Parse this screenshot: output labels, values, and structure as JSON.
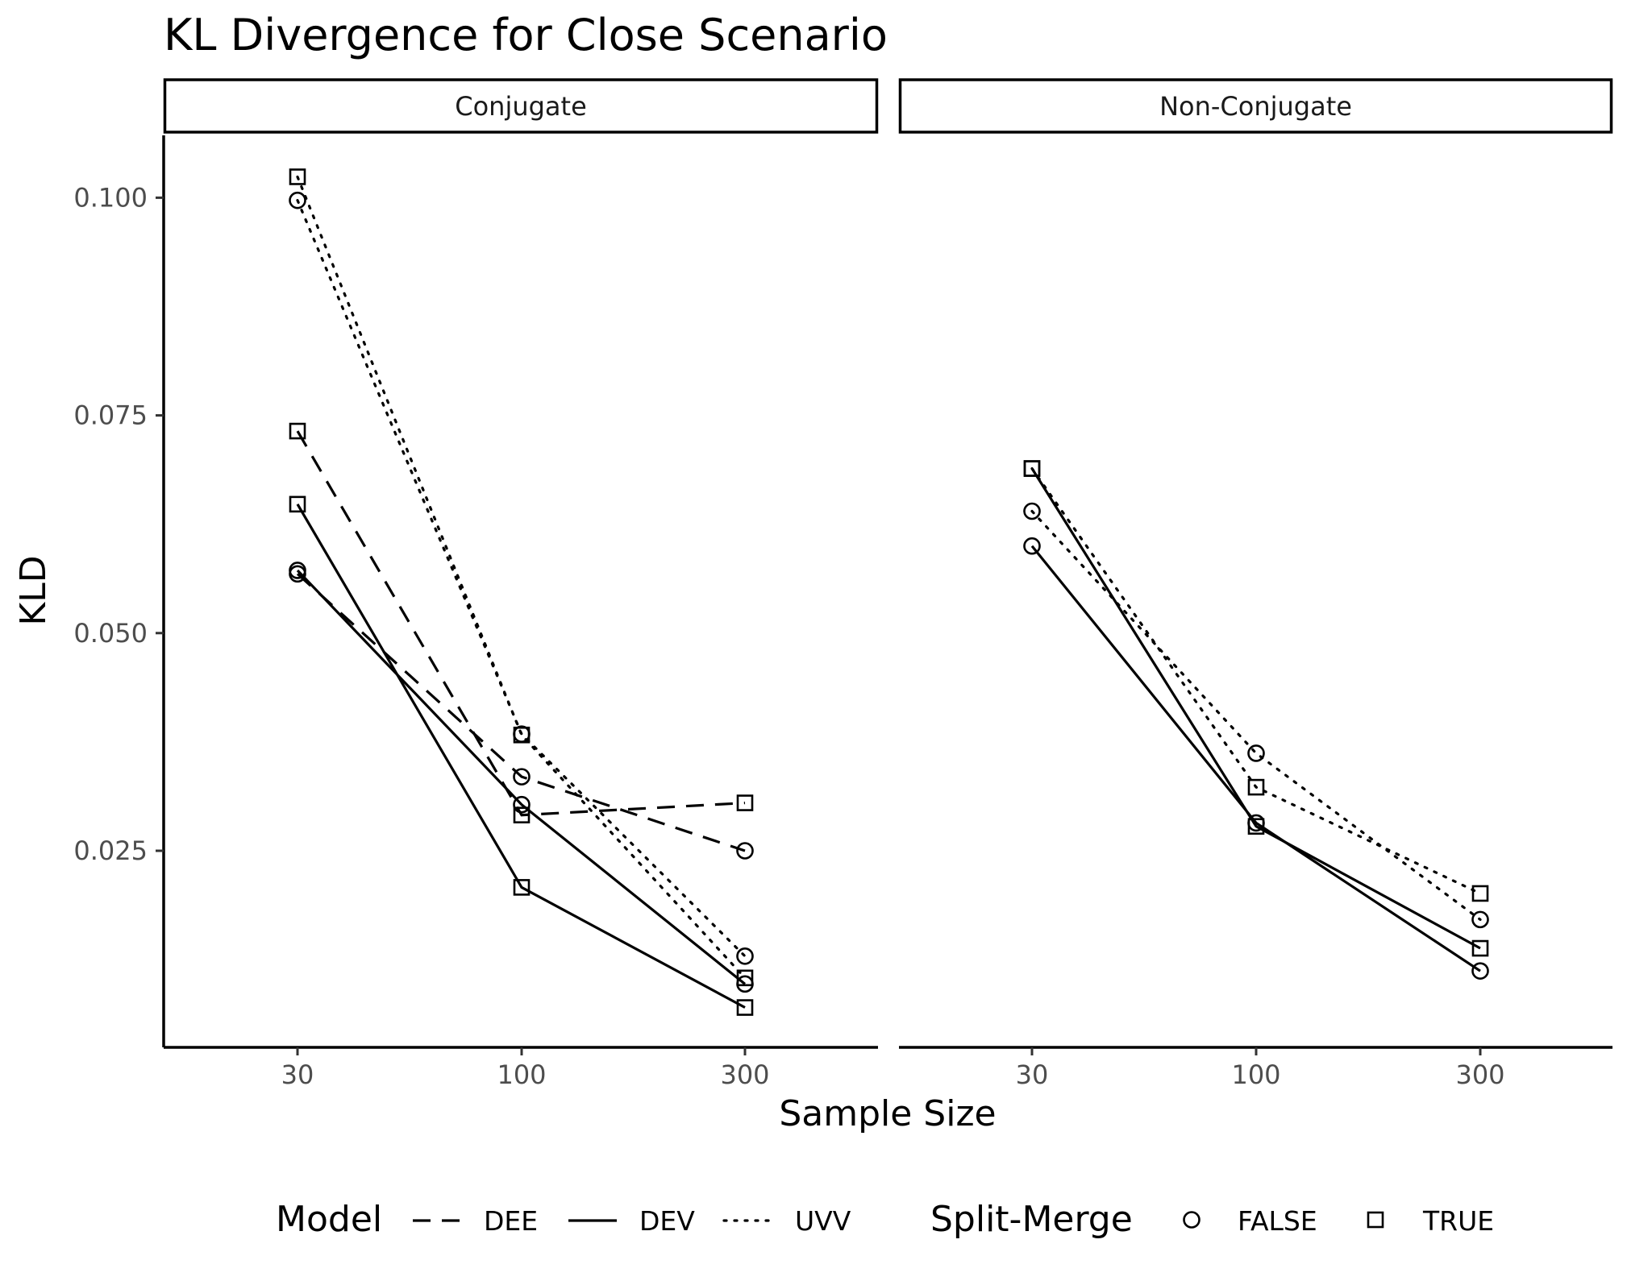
{
  "chart_data": {
    "type": "line",
    "title": "KL Divergence for Close Scenario",
    "xlabel": "Sample Size",
    "ylabel": "KLD",
    "x_categories": [
      "30",
      "100",
      "300"
    ],
    "y_ticks": [
      "0.025",
      "0.050",
      "0.075",
      "0.100"
    ],
    "ylim": [
      0.0035,
      0.108
    ],
    "grid": false,
    "legend_position": "bottom",
    "legend": {
      "model_title": "Model",
      "model_items": [
        {
          "label": "DEE",
          "linetype": "dashed"
        },
        {
          "label": "DEV",
          "linetype": "solid"
        },
        {
          "label": "UVV",
          "linetype": "dotted"
        }
      ],
      "split_title": "Split-Merge",
      "split_items": [
        {
          "label": "FALSE",
          "shape": "circle"
        },
        {
          "label": "TRUE",
          "shape": "square"
        }
      ]
    },
    "panels": [
      {
        "label": "Conjugate",
        "series": [
          {
            "model": "DEE",
            "split_merge": "FALSE",
            "values": [
              0.0568,
              0.0335,
              0.025
            ]
          },
          {
            "model": "DEE",
            "split_merge": "TRUE",
            "values": [
              0.0732,
              0.0291,
              0.0305
            ]
          },
          {
            "model": "DEV",
            "split_merge": "FALSE",
            "values": [
              0.0572,
              0.0303,
              0.0097
            ]
          },
          {
            "model": "DEV",
            "split_merge": "TRUE",
            "values": [
              0.0648,
              0.0208,
              0.007
            ]
          },
          {
            "model": "UVV",
            "split_merge": "FALSE",
            "values": [
              0.0997,
              0.0384,
              0.0129
            ]
          },
          {
            "model": "UVV",
            "split_merge": "TRUE",
            "values": [
              0.1024,
              0.0383,
              0.0104
            ]
          }
        ]
      },
      {
        "label": "Non-Conjugate",
        "series": [
          {
            "model": "DEV",
            "split_merge": "FALSE",
            "values": [
              0.06,
              0.0282,
              0.0112
            ]
          },
          {
            "model": "DEV",
            "split_merge": "TRUE",
            "values": [
              0.0689,
              0.0278,
              0.0138
            ]
          },
          {
            "model": "UVV",
            "split_merge": "FALSE",
            "values": [
              0.064,
              0.0362,
              0.0171
            ]
          },
          {
            "model": "UVV",
            "split_merge": "TRUE",
            "values": [
              0.0689,
              0.0323,
              0.0201
            ]
          }
        ]
      }
    ]
  }
}
